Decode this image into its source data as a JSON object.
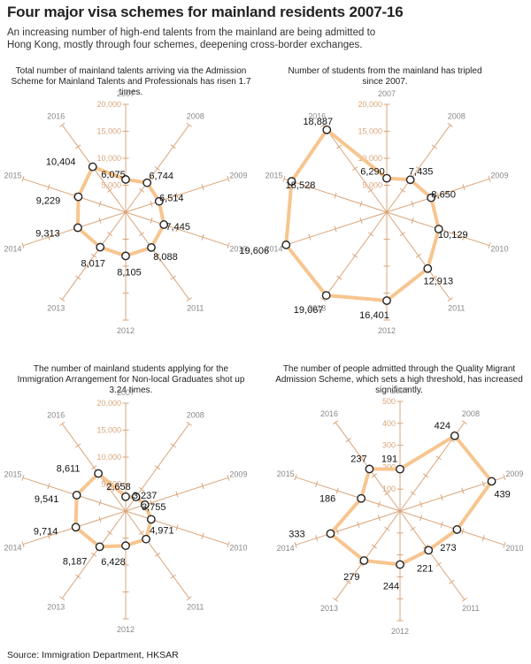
{
  "header": {
    "title": "Four major visa schemes for mainland residents 2007-16",
    "subtitle": "An increasing number of high-end talents from the mainland are being admitted to Hong Kong, mostly through four schemes, deepening cross-border exchanges."
  },
  "source": "Source: Immigration Department, HKSAR",
  "colors": {
    "axis": "#d9a57a",
    "line": "#f7c58f",
    "marker_stroke": "#222222",
    "marker_fill": "#ffffff",
    "year_label": "#888888"
  },
  "chart_data": [
    {
      "type": "radar",
      "title": "Total number of mainland talents arriving via the Admission Scheme for Mainland Talents and Professionals has risen 1.7 times.",
      "categories": [
        "2007",
        "2008",
        "2009",
        "2010",
        "2011",
        "2012",
        "2013",
        "2014",
        "2015",
        "2016"
      ],
      "values": [
        6075,
        6744,
        6514,
        7445,
        8088,
        8105,
        8017,
        9313,
        9229,
        10404
      ],
      "value_labels": [
        "6,075",
        "6,744",
        "6,514",
        "7,445",
        "8,088",
        "8,105",
        "8,017",
        "9,313",
        "9,229",
        "10,404"
      ],
      "rlim": [
        0,
        20000
      ],
      "ticks": [
        5000,
        10000,
        15000,
        20000
      ],
      "tick_labels": [
        "5,000",
        "10,000",
        "15,000",
        "20,000"
      ]
    },
    {
      "type": "radar",
      "title": "Number of students from the mainland has tripled since 2007.",
      "categories": [
        "2007",
        "2008",
        "2009",
        "2010",
        "2011",
        "2012",
        "2013",
        "2014",
        "2015",
        "2016"
      ],
      "values": [
        6290,
        7435,
        8650,
        10129,
        12913,
        16401,
        19067,
        19606,
        18528,
        18887
      ],
      "value_labels": [
        "6,290",
        "7,435",
        "8,650",
        "10,129",
        "12,913",
        "16,401",
        "19,067",
        "19,606",
        "18,528",
        "18,887"
      ],
      "rlim": [
        0,
        20000
      ],
      "ticks": [
        5000,
        10000,
        15000,
        20000
      ],
      "tick_labels": [
        "5,000",
        "10,000",
        "15,000",
        "20,000"
      ]
    },
    {
      "type": "radar",
      "title": "The number of mainland students applying for the Immigration Arrangement for Non-local Graduates shot up 3.24 times.",
      "categories": [
        "2007",
        "2008",
        "2009",
        "2010",
        "2011",
        "2012",
        "2013",
        "2014",
        "2015",
        "2016"
      ],
      "values": [
        2658,
        3237,
        3755,
        4971,
        6428,
        6428,
        8187,
        9714,
        9541,
        8611
      ],
      "value_labels": [
        "2,658",
        "3,237",
        "3,755",
        "4,971",
        "",
        "6,428",
        "8,187",
        "9,714",
        "9,541",
        "8,611"
      ],
      "rlim": [
        0,
        20000
      ],
      "ticks": [
        5000,
        10000,
        15000,
        20000
      ],
      "tick_labels": [
        "5,000",
        "10,000",
        "15,000",
        "20,000"
      ]
    },
    {
      "type": "radar",
      "title": "The number of people admitted through the Quality Migrant Admission Scheme, which sets a high threshold, has increased significantly.",
      "categories": [
        "2007",
        "2008",
        "2009",
        "2010",
        "2011",
        "2012",
        "2013",
        "2014",
        "2015",
        "2016"
      ],
      "values": [
        191,
        424,
        439,
        273,
        221,
        244,
        279,
        333,
        186,
        237
      ],
      "value_labels": [
        "191",
        "424",
        "439",
        "273",
        "221",
        "244",
        "279",
        "333",
        "186",
        "237"
      ],
      "rlim": [
        0,
        500
      ],
      "ticks": [
        100,
        200,
        300,
        400,
        500
      ],
      "tick_labels": [
        "100",
        "200",
        "300",
        "400",
        "500"
      ]
    }
  ]
}
